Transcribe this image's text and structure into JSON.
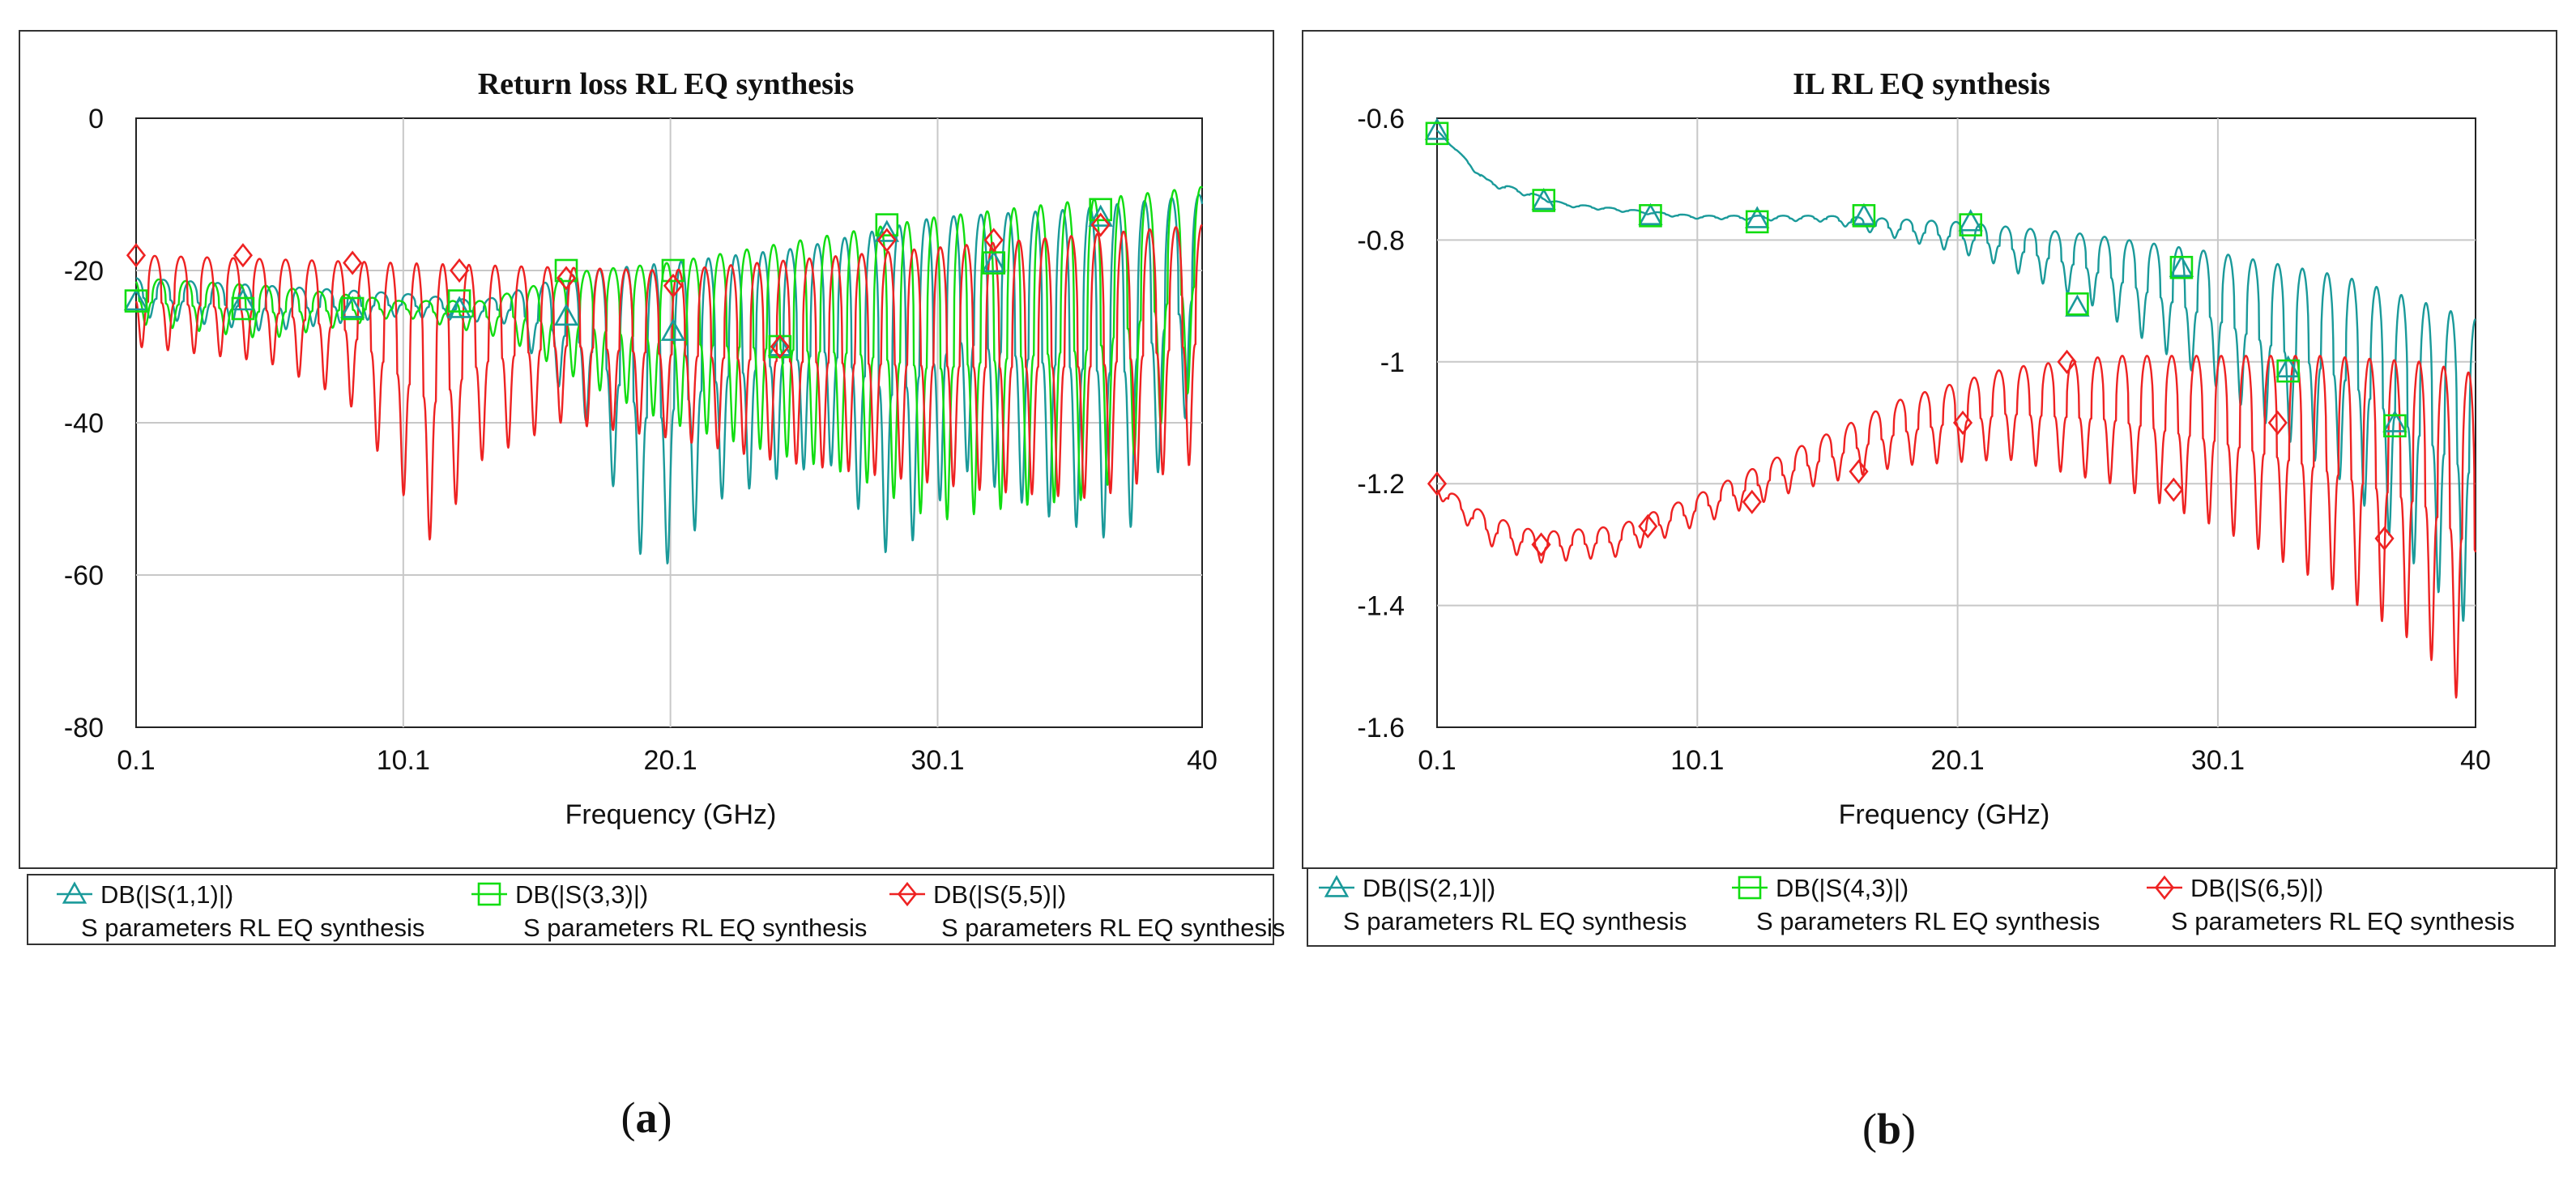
{
  "chart_data": [
    {
      "id": "a",
      "type": "line",
      "title": "Return loss RL EQ synthesis",
      "xlabel": "Frequency (GHz)",
      "ylabel": "",
      "xlim": [
        0.1,
        40
      ],
      "ylim": [
        -80,
        0
      ],
      "xticks": [
        0.1,
        10.1,
        20.1,
        30.1,
        40
      ],
      "xtick_labels": [
        "0.1",
        "10.1",
        "20.1",
        "30.1",
        "40"
      ],
      "yticks": [
        0,
        -20,
        -40,
        -60,
        -80
      ],
      "ytick_labels": [
        "0",
        "-20",
        "-40",
        "-60",
        "-80"
      ],
      "grid": true,
      "legend_position": "bottom",
      "caption": "(a)",
      "series": [
        {
          "name": "DB(|S(1,1)|)",
          "source": "S parameters RL EQ synthesis",
          "color": "#1a9a9a",
          "marker": "triangle",
          "envelope_top": [
            [
              0.1,
              -21
            ],
            [
              5,
              -22
            ],
            [
              10,
              -23
            ],
            [
              13,
              -24
            ],
            [
              17,
              -20
            ],
            [
              20,
              -19
            ],
            [
              25,
              -17
            ],
            [
              30,
              -13
            ],
            [
              35,
              -12
            ],
            [
              40,
              -10
            ]
          ],
          "envelope_bottom": [
            [
              0.1,
              -26
            ],
            [
              5,
              -28
            ],
            [
              10,
              -26
            ],
            [
              14,
              -27
            ],
            [
              17,
              -40
            ],
            [
              19.4,
              -61
            ],
            [
              22,
              -50
            ],
            [
              26,
              -45
            ],
            [
              28.5,
              -59
            ],
            [
              31,
              -46
            ],
            [
              34,
              -52
            ],
            [
              37,
              -56
            ],
            [
              40,
              -35
            ]
          ],
          "ripple_period": 1.02,
          "markers": [
            [
              0.1,
              -24
            ],
            [
              4.1,
              -24
            ],
            [
              8.2,
              -25
            ],
            [
              12.2,
              -25
            ],
            [
              16.2,
              -26
            ],
            [
              20.2,
              -28
            ],
            [
              24.2,
              -30
            ],
            [
              28.2,
              -15
            ],
            [
              32.2,
              -19
            ],
            [
              36.2,
              -13
            ]
          ]
        },
        {
          "name": "DB(|S(3,3)|)",
          "source": "S parameters RL EQ synthesis",
          "color": "#11dd11",
          "marker": "square",
          "envelope_top": [
            [
              0.1,
              -21
            ],
            [
              5,
              -22
            ],
            [
              10,
              -24
            ],
            [
              13,
              -24
            ],
            [
              17,
              -20
            ],
            [
              20,
              -19
            ],
            [
              25,
              -16
            ],
            [
              30,
              -13
            ],
            [
              35,
              -11
            ],
            [
              40,
              -9
            ]
          ],
          "envelope_bottom": [
            [
              0.1,
              -27
            ],
            [
              5,
              -29
            ],
            [
              10,
              -26
            ],
            [
              14,
              -29
            ],
            [
              17,
              -35
            ],
            [
              20,
              -40
            ],
            [
              24,
              -44
            ],
            [
              27,
              -47
            ],
            [
              30,
              -53
            ],
            [
              33,
              -51
            ],
            [
              36,
              -50
            ],
            [
              40,
              -34
            ]
          ],
          "ripple_period": 1.0,
          "markers": [
            [
              0.1,
              -24
            ],
            [
              4.1,
              -25
            ],
            [
              8.2,
              -25
            ],
            [
              12.2,
              -24
            ],
            [
              16.2,
              -20
            ],
            [
              20.2,
              -20
            ],
            [
              24.2,
              -30
            ],
            [
              28.2,
              -14
            ],
            [
              32.2,
              -19
            ],
            [
              36.2,
              -12
            ]
          ]
        },
        {
          "name": "DB(|S(5,5)|)",
          "source": "S parameters RL EQ synthesis",
          "color": "#ee2222",
          "marker": "diamond",
          "envelope_top": [
            [
              0.1,
              -18
            ],
            [
              10,
              -19
            ],
            [
              20,
              -20
            ],
            [
              30,
              -17
            ],
            [
              40,
              -14
            ]
          ],
          "envelope_bottom": [
            [
              0.1,
              -30
            ],
            [
              5,
              -32
            ],
            [
              8,
              -37
            ],
            [
              11.2,
              -56
            ],
            [
              13,
              -45
            ],
            [
              16,
              -40
            ],
            [
              20,
              -42
            ],
            [
              24,
              -45
            ],
            [
              28,
              -47
            ],
            [
              32,
              -49
            ],
            [
              36,
              -50
            ],
            [
              40,
              -45
            ]
          ],
          "ripple_period": 0.98,
          "markers": [
            [
              0.1,
              -18
            ],
            [
              4.1,
              -18
            ],
            [
              8.2,
              -19
            ],
            [
              12.2,
              -20
            ],
            [
              16.2,
              -21
            ],
            [
              20.2,
              -22
            ],
            [
              24.2,
              -30
            ],
            [
              28.2,
              -16
            ],
            [
              32.2,
              -16
            ],
            [
              36.2,
              -14
            ]
          ]
        }
      ]
    },
    {
      "id": "b",
      "type": "line",
      "title": "IL RL EQ synthesis",
      "xlabel": "Frequency (GHz)",
      "ylabel": "",
      "xlim": [
        0.1,
        40
      ],
      "ylim": [
        -1.6,
        -0.6
      ],
      "xticks": [
        0.1,
        10.1,
        20.1,
        30.1,
        40
      ],
      "xtick_labels": [
        "0.1",
        "10.1",
        "20.1",
        "30.1",
        "40"
      ],
      "yticks": [
        -0.6,
        -0.8,
        -1,
        -1.2,
        -1.4,
        -1.6
      ],
      "ytick_labels": [
        "-0.6",
        "-0.8",
        "-1",
        "-1.2",
        "-1.4",
        "-1.6"
      ],
      "grid": true,
      "legend_position": "bottom",
      "caption": "(b)",
      "series": [
        {
          "name": "DB(|S(2,1)|)",
          "source": "S parameters RL EQ synthesis",
          "color": "#1a9a9a",
          "marker": "triangle",
          "envelope_top": [
            [
              0.1,
              -0.62
            ],
            [
              2,
              -0.7
            ],
            [
              5,
              -0.74
            ],
            [
              10,
              -0.76
            ],
            [
              15,
              -0.76
            ],
            [
              20,
              -0.77
            ],
            [
              25,
              -0.79
            ],
            [
              30,
              -0.82
            ],
            [
              35,
              -0.86
            ],
            [
              40,
              -0.93
            ]
          ],
          "envelope_bottom": [
            [
              0.1,
              -0.62
            ],
            [
              2,
              -0.71
            ],
            [
              5,
              -0.745
            ],
            [
              10,
              -0.765
            ],
            [
              15,
              -0.77
            ],
            [
              18,
              -0.8
            ],
            [
              21,
              -0.83
            ],
            [
              25,
              -0.9
            ],
            [
              30,
              -1.04
            ],
            [
              35,
              -1.2
            ],
            [
              40,
              -1.45
            ]
          ],
          "ripple_period": 0.95,
          "markers": [
            [
              0.1,
              -0.62
            ],
            [
              4.2,
              -0.735
            ],
            [
              8.3,
              -0.76
            ],
            [
              12.4,
              -0.765
            ],
            [
              16.5,
              -0.76
            ],
            [
              20.6,
              -0.77
            ],
            [
              24.7,
              -0.91
            ],
            [
              28.7,
              -0.845
            ],
            [
              32.8,
              -1.01
            ],
            [
              36.9,
              -1.1
            ]
          ]
        },
        {
          "name": "DB(|S(4,3)|)",
          "source": "S parameters RL EQ synthesis",
          "color": "#11dd11",
          "marker": "square",
          "envelope_top": [],
          "envelope_bottom": [],
          "ripple_period": 0.95,
          "markers": [
            [
              0.1,
              -0.625
            ],
            [
              4.2,
              -0.735
            ],
            [
              8.3,
              -0.76
            ],
            [
              12.4,
              -0.77
            ],
            [
              16.5,
              -0.76
            ],
            [
              20.6,
              -0.775
            ],
            [
              24.7,
              -0.905
            ],
            [
              28.7,
              -0.845
            ],
            [
              32.8,
              -1.015
            ],
            [
              36.9,
              -1.105
            ]
          ]
        },
        {
          "name": "DB(|S(6,5)|)",
          "source": "S parameters RL EQ synthesis",
          "color": "#ee2222",
          "marker": "diamond",
          "envelope_top": [
            [
              0.1,
              -1.2
            ],
            [
              2,
              -1.25
            ],
            [
              4,
              -1.28
            ],
            [
              7,
              -1.27
            ],
            [
              10,
              -1.22
            ],
            [
              14,
              -1.14
            ],
            [
              18,
              -1.06
            ],
            [
              22,
              -1.01
            ],
            [
              26,
              -0.99
            ],
            [
              30,
              -0.99
            ],
            [
              34,
              -0.99
            ],
            [
              38,
              -1.0
            ],
            [
              40,
              -1.02
            ]
          ],
          "envelope_bottom": [
            [
              0.1,
              -1.22
            ],
            [
              2,
              -1.3
            ],
            [
              4,
              -1.33
            ],
            [
              7,
              -1.32
            ],
            [
              10,
              -1.27
            ],
            [
              14,
              -1.21
            ],
            [
              18,
              -1.17
            ],
            [
              22,
              -1.16
            ],
            [
              26,
              -1.2
            ],
            [
              30,
              -1.27
            ],
            [
              34,
              -1.36
            ],
            [
              38,
              -1.47
            ],
            [
              40,
              -1.6
            ]
          ],
          "ripple_period": 0.95,
          "markers": [
            [
              0.1,
              -1.2
            ],
            [
              4.1,
              -1.3
            ],
            [
              8.2,
              -1.27
            ],
            [
              12.2,
              -1.23
            ],
            [
              16.3,
              -1.18
            ],
            [
              20.3,
              -1.1
            ],
            [
              24.3,
              -1.0
            ],
            [
              28.4,
              -1.21
            ],
            [
              32.4,
              -1.1
            ],
            [
              36.5,
              -1.29
            ]
          ]
        }
      ]
    }
  ],
  "colors": {
    "teal": "#1a9a9a",
    "green": "#11dd11",
    "red": "#ee2222",
    "grid": "#c8c8c8"
  }
}
